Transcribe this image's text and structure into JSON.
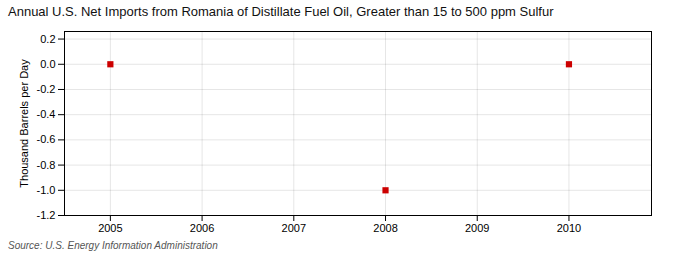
{
  "chart_data": {
    "type": "scatter",
    "title": "Annual U.S. Net Imports from Romania of Distillate Fuel Oil, Greater than 15 to 500 ppm Sulfur",
    "ylabel": "Thousand Barrels per Day",
    "source": "Source: U.S. Energy Information Administration",
    "x": [
      2005,
      2008,
      2010
    ],
    "values": [
      0,
      -1,
      0
    ],
    "color": "#cc0000",
    "marker": "square",
    "xlim": [
      2004.5,
      2010.9
    ],
    "ylim": [
      -1.2,
      0.26
    ],
    "xticks": [
      2005,
      2006,
      2007,
      2008,
      2009,
      2010
    ],
    "yticks": [
      0.2,
      {
        "value": 0,
        "label": "0.0"
      },
      -0.2,
      -0.4,
      -0.6,
      -0.8,
      {
        "value": -1,
        "label": "-1.0"
      },
      -1.2
    ],
    "grid": true
  }
}
